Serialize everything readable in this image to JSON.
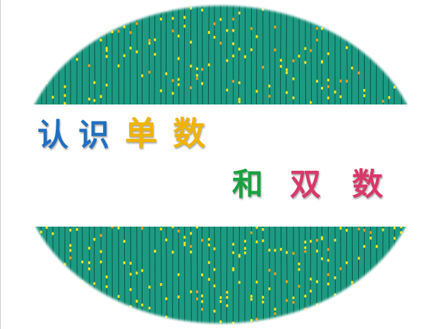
{
  "title": {
    "chars": [
      "认",
      "识",
      "单",
      "数",
      "和",
      "双",
      "数"
    ],
    "colors": [
      "#1f6fc0",
      "#1f6fc0",
      "#f0b400",
      "#f0b400",
      "#1aa040",
      "#d8386a",
      "#d8386a"
    ]
  },
  "colors": {
    "panel": "#1c9a82",
    "stripe": "#0b4a3c",
    "dot_yellow": "#f5e21a",
    "dot_orange": "#f59a1a",
    "background": "#ffffff"
  }
}
